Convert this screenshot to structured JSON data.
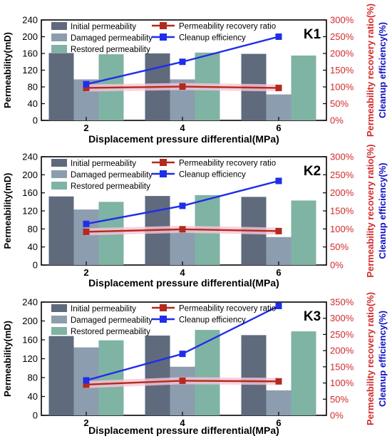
{
  "chart_data": [
    {
      "type": "bar",
      "panel_label": "K1",
      "xlabel": "Displacement pressure differential(MPa)",
      "ylabel": "Permeability(mD)",
      "y2label_red": "Permeability recovery ratio(%)",
      "y2label_blue": "Cleanup efficiency(%)",
      "categories": [
        "2",
        "4",
        "6"
      ],
      "ylim": [
        0,
        240
      ],
      "yticks": [
        "0",
        "40",
        "80",
        "120",
        "160",
        "200",
        "240"
      ],
      "y2lim": [
        0,
        300
      ],
      "y2ticks": [
        "0%",
        "50%",
        "100%",
        "150%",
        "200%",
        "250%",
        "300%"
      ],
      "series": [
        {
          "name": "Initial permeability",
          "kind": "bar",
          "axis": "left",
          "values": [
            161,
            160,
            159
          ]
        },
        {
          "name": "Damaged permeability",
          "kind": "bar",
          "axis": "left",
          "values": [
            98,
            98,
            62
          ]
        },
        {
          "name": "Restored permeability",
          "kind": "bar",
          "axis": "left",
          "values": [
            158,
            162,
            155
          ]
        },
        {
          "name": "Permeability recovery ratio",
          "kind": "line",
          "axis": "right",
          "values": [
            97,
            101,
            97
          ]
        },
        {
          "name": "Cleanup efficiency",
          "kind": "line",
          "axis": "right",
          "values": [
            108,
            175,
            250
          ]
        }
      ],
      "legend_position": "top-left"
    },
    {
      "type": "bar",
      "panel_label": "K2",
      "xlabel": "Displacement pressure differential(MPa)",
      "ylabel": "Permeability(mD)",
      "y2label_red": "Permeability recovery ratio(%)",
      "y2label_blue": "Cleanup efficiency(%)",
      "categories": [
        "2",
        "4",
        "6"
      ],
      "ylim": [
        0,
        240
      ],
      "yticks": [
        "0",
        "40",
        "80",
        "120",
        "160",
        "200",
        "240"
      ],
      "y2lim": [
        0,
        300
      ],
      "y2ticks": [
        "0%",
        "50%",
        "100%",
        "150%",
        "200%",
        "250%",
        "300%"
      ],
      "series": [
        {
          "name": "Initial permeability",
          "kind": "bar",
          "axis": "left",
          "values": [
            152,
            153,
            151
          ]
        },
        {
          "name": "Damaged permeability",
          "kind": "bar",
          "axis": "left",
          "values": [
            123,
            78,
            62
          ]
        },
        {
          "name": "Restored permeability",
          "kind": "bar",
          "axis": "left",
          "values": [
            140,
            155,
            143
          ]
        },
        {
          "name": "Permeability recovery ratio",
          "kind": "line",
          "axis": "right",
          "values": [
            92,
            99,
            94
          ]
        },
        {
          "name": "Cleanup efficiency",
          "kind": "line",
          "axis": "right",
          "values": [
            114,
            164,
            233
          ]
        }
      ],
      "legend_position": "top-left"
    },
    {
      "type": "bar",
      "panel_label": "K3",
      "xlabel": "Displacement pressure differential(MPa)",
      "ylabel": "Permeability(mD)",
      "y2label_red": "Permeability recovery ratio(%)",
      "y2label_blue": "Cleanup efficiency(%)",
      "categories": [
        "2",
        "4",
        "6"
      ],
      "ylim": [
        0,
        240
      ],
      "yticks": [
        "0",
        "40",
        "80",
        "120",
        "160",
        "200",
        "240"
      ],
      "y2lim": [
        0,
        350
      ],
      "y2ticks": [
        "0%",
        "50%",
        "100%",
        "150%",
        "200%",
        "250%",
        "300%",
        "350%"
      ],
      "series": [
        {
          "name": "Initial permeability",
          "kind": "bar",
          "axis": "left",
          "values": [
            168,
            169,
            170
          ]
        },
        {
          "name": "Damaged permeability",
          "kind": "bar",
          "axis": "left",
          "values": [
            144,
            103,
            53
          ]
        },
        {
          "name": "Restored permeability",
          "kind": "bar",
          "axis": "left",
          "values": [
            159,
            181,
            178
          ]
        },
        {
          "name": "Permeability recovery ratio",
          "kind": "line",
          "axis": "right",
          "values": [
            95,
            107,
            105
          ]
        },
        {
          "name": "Cleanup efficiency",
          "kind": "line",
          "axis": "right",
          "values": [
            108,
            190,
            338
          ]
        }
      ],
      "legend_position": "top-left"
    }
  ],
  "colors": {
    "initial": "#5f6a7d",
    "damaged": "#8c9daf",
    "restored": "#7fb3a4",
    "recovery": "#b22a1e",
    "cleanup": "#1f2ee8",
    "red_label": "#d22a2a",
    "blue_label": "#1010c8",
    "highlight": "#f7c6d7"
  }
}
